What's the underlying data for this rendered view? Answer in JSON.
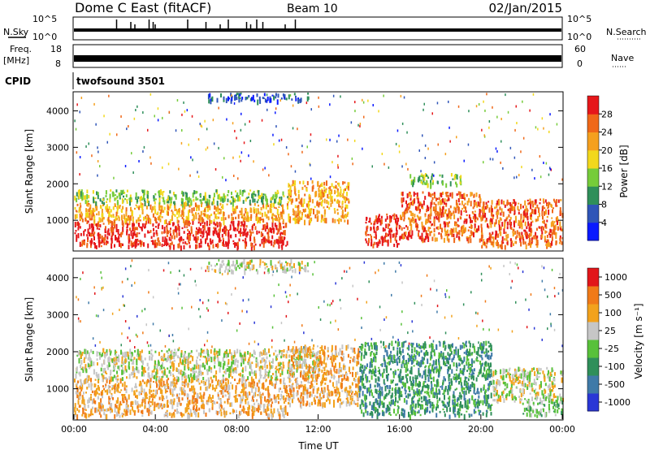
{
  "header": {
    "title": "Dome C East (fitACF)",
    "beam": "Beam 10",
    "date": "02/Jan/2015"
  },
  "noise_panel": {
    "left_label": "N.Sky",
    "right_label": "N.Search",
    "left_ticks": [
      "10^5",
      "10^0"
    ],
    "right_ticks": [
      "10^5",
      "10^0"
    ],
    "spike_times_h": [
      2.1,
      2.8,
      3.0,
      3.7,
      3.9,
      4.0,
      5.6,
      6.5,
      7.2,
      7.6,
      8.5,
      8.7,
      9.0,
      9.3,
      10.4,
      10.9
    ]
  },
  "freq_panel": {
    "left_label_1": "Freq.",
    "left_label_2": "[MHz]",
    "right_label": "Nave",
    "left_ticks": [
      "18",
      "8"
    ],
    "right_ticks": [
      "60",
      "0"
    ]
  },
  "cpid": {
    "label": "CPID",
    "value": "twofsound 3501"
  },
  "chart_data": [
    {
      "type": "heatmap",
      "name": "Power",
      "ylabel": "Slant Range [km]",
      "xlabel": "Time UT",
      "xlim": [
        0,
        24
      ],
      "ylim": [
        180,
        4500
      ],
      "yticks": [
        "1000",
        "2000",
        "3000",
        "4000"
      ],
      "colorbar_label": "Power [dB]",
      "colorbar_ticks": [
        "4",
        "8",
        "12",
        "16",
        "20",
        "24",
        "28"
      ],
      "colorbar_colors": [
        "#0a1aff",
        "#2f55b8",
        "#2f8f5a",
        "#76cc3a",
        "#f2d81c",
        "#f5a01e",
        "#f06818",
        "#e6171a"
      ],
      "bands": [
        {
          "t0": 0.0,
          "t1": 10.5,
          "r0": 300,
          "r1": 1000,
          "level": 7
        },
        {
          "t0": 0.0,
          "t1": 10.5,
          "r0": 1000,
          "r1": 1500,
          "level": 5
        },
        {
          "t0": 0.0,
          "t1": 10.5,
          "r0": 1500,
          "r1": 1850,
          "level": 3
        },
        {
          "t0": 10.5,
          "t1": 13.5,
          "r0": 1000,
          "r1": 2100,
          "level": 5
        },
        {
          "t0": 14.3,
          "t1": 16.0,
          "r0": 350,
          "r1": 1200,
          "level": 7
        },
        {
          "t0": 16.0,
          "t1": 20.0,
          "r0": 500,
          "r1": 1800,
          "level": 6
        },
        {
          "t0": 16.5,
          "t1": 19.0,
          "r0": 2000,
          "r1": 2300,
          "level": 3
        },
        {
          "t0": 20.0,
          "t1": 24.0,
          "r0": 300,
          "r1": 1600,
          "level": 6
        },
        {
          "t0": 6.5,
          "t1": 11.5,
          "r0": 4300,
          "r1": 4500,
          "level": 1
        }
      ]
    },
    {
      "type": "heatmap",
      "name": "Velocity",
      "ylabel": "Slant Range [km]",
      "xlabel": "Time UT",
      "xlim": [
        0,
        24
      ],
      "ylim": [
        180,
        4500
      ],
      "yticks": [
        "1000",
        "2000",
        "3000",
        "4000"
      ],
      "xticks": [
        "00:00",
        "04:00",
        "08:00",
        "12:00",
        "16:00",
        "20:00",
        "00:00"
      ],
      "colorbar_label": "Velocity [m s⁻¹]",
      "colorbar_ticks": [
        "1000",
        "500",
        "100",
        "25",
        "-25",
        "-100",
        "-500",
        "-1000"
      ],
      "colorbar_colors": [
        "#2a37d6",
        "#3f7aa8",
        "#2f8f5a",
        "#58c13a",
        "#c6c6c6",
        "#f2a21c",
        "#f07a18",
        "#e2161a"
      ],
      "bands": [
        {
          "t0": 0.0,
          "t1": 10.5,
          "r0": 300,
          "r1": 1300,
          "level": 5
        },
        {
          "t0": 0.0,
          "t1": 12.0,
          "r0": 1300,
          "r1": 2100,
          "level": 4
        },
        {
          "t0": 10.5,
          "t1": 14.0,
          "r0": 600,
          "r1": 2200,
          "level": 5
        },
        {
          "t0": 14.0,
          "t1": 20.5,
          "r0": 300,
          "r1": 2300,
          "level": 2
        },
        {
          "t0": 20.5,
          "t1": 24.0,
          "r0": 700,
          "r1": 1600,
          "level": 4
        },
        {
          "t0": 22.0,
          "t1": 24.0,
          "r0": 300,
          "r1": 700,
          "level": 3
        },
        {
          "t0": 6.5,
          "t1": 11.5,
          "r0": 4200,
          "r1": 4500,
          "level": 4
        }
      ]
    }
  ]
}
